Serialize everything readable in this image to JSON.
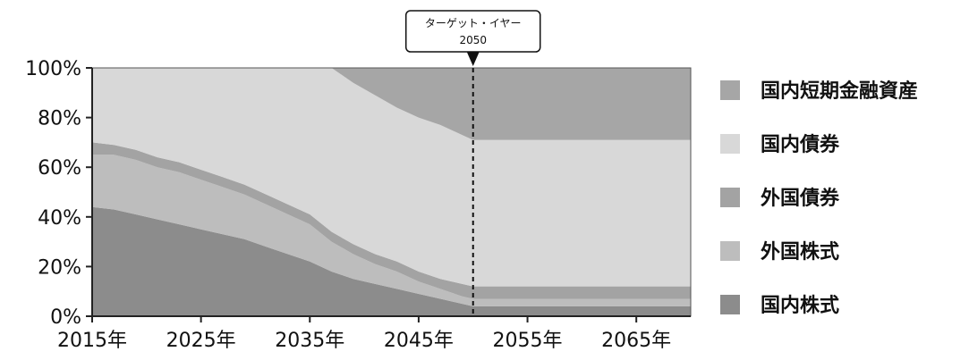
{
  "chart_data": {
    "type": "area",
    "stacked": true,
    "x": [
      2015,
      2017,
      2019,
      2021,
      2023,
      2025,
      2027,
      2029,
      2031,
      2033,
      2035,
      2037,
      2039,
      2041,
      2043,
      2045,
      2047,
      2049,
      2050,
      2055,
      2060,
      2065,
      2070
    ],
    "x_ticks": [
      2015,
      2025,
      2035,
      2045,
      2055,
      2065
    ],
    "x_tick_labels": [
      "2015年",
      "2025年",
      "2035年",
      "2045年",
      "2055年",
      "2065年"
    ],
    "xlim": [
      2015,
      2070
    ],
    "ylim": [
      0,
      100
    ],
    "y_ticks": [
      0,
      20,
      40,
      60,
      80,
      100
    ],
    "y_tick_labels": [
      "0%",
      "20%",
      "40%",
      "60%",
      "80%",
      "100%"
    ],
    "series": [
      {
        "name": "国内株式",
        "color": "#8c8c8c",
        "values": [
          44,
          43,
          41,
          39,
          37,
          35,
          33,
          31,
          28,
          25,
          22,
          18,
          15,
          13,
          11,
          9,
          7,
          5,
          4,
          4,
          4,
          4,
          4
        ]
      },
      {
        "name": "外国株式",
        "color": "#bdbdbd",
        "values": [
          21,
          22,
          22,
          21,
          21,
          20,
          19,
          18,
          17,
          16,
          15,
          12,
          10,
          8,
          7,
          5,
          4,
          3,
          3,
          3,
          3,
          3,
          3
        ]
      },
      {
        "name": "外国債券",
        "color": "#a3a3a3",
        "values": [
          5,
          4,
          4,
          4,
          4,
          4,
          4,
          4,
          4,
          4,
          4,
          4,
          4,
          4,
          4,
          4,
          4,
          5,
          5,
          5,
          5,
          5,
          5
        ]
      },
      {
        "name": "国内債券",
        "color": "#d8d8d8",
        "values": [
          30,
          31,
          33,
          36,
          38,
          41,
          44,
          47,
          51,
          55,
          59,
          66,
          65,
          64,
          62,
          62,
          62,
          60,
          59,
          59,
          59,
          59,
          59
        ]
      },
      {
        "name": "国内短期金融資産",
        "color": "#a6a6a6",
        "values": [
          0,
          0,
          0,
          0,
          0,
          0,
          0,
          0,
          0,
          0,
          0,
          0,
          6,
          11,
          16,
          20,
          23,
          27,
          29,
          29,
          29,
          29,
          29
        ]
      }
    ],
    "legend_order": [
      "国内短期金融資産",
      "国内債券",
      "外国債券",
      "外国株式",
      "国内株式"
    ],
    "legend_position": "right",
    "target_line": {
      "x": 2050,
      "label": "ターゲット・イヤー",
      "value_label": "2050"
    },
    "grid": false
  }
}
